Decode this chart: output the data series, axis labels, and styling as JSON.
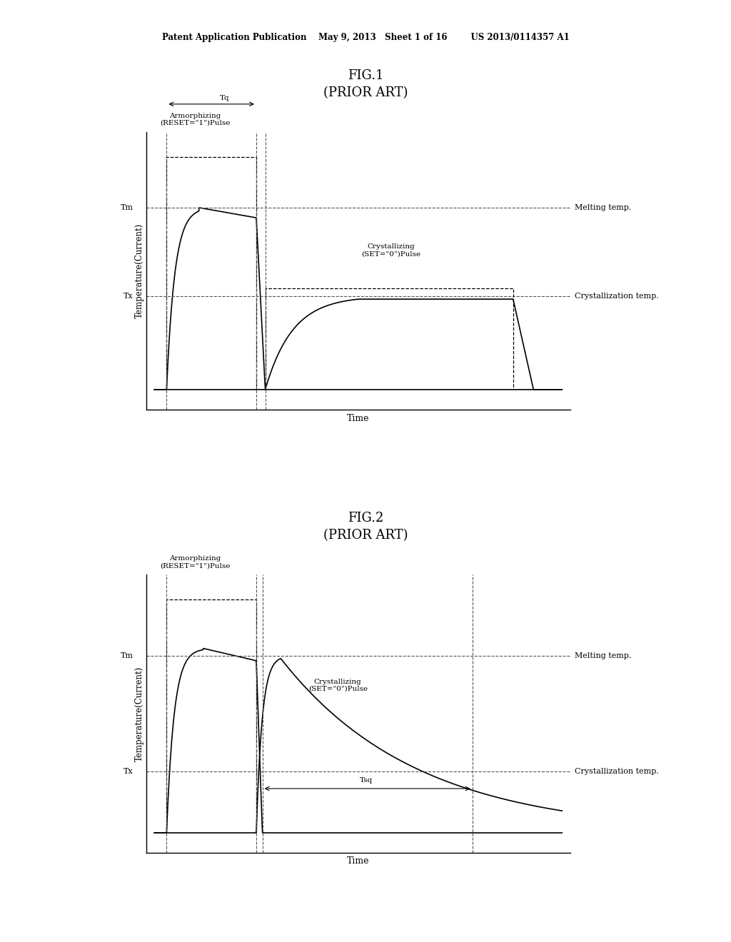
{
  "background_color": "#ffffff",
  "header_text": "Patent Application Publication    May 9, 2013   Sheet 1 of 16        US 2013/0114357 A1",
  "fig1_title": "FIG.1\n(PRIOR ART)",
  "fig2_title": "FIG.2\n(PRIOR ART)",
  "fig1_xlabel": "Time",
  "fig1_ylabel": "Temperature(Current)",
  "fig2_xlabel": "Time",
  "fig2_ylabel": "Temperature(Current)",
  "Tm_label": "Tm",
  "Tx_label": "Tx",
  "melting_temp_label": "Melting temp.",
  "crystallization_temp_label": "Crystallization temp.",
  "fig1_reset_label": "Armorphizing\n(RESET=\"1\")Pulse",
  "fig1_set_label": "Crystallizing\n(SET=\"0\")Pulse",
  "fig1_tq_label": "Tq",
  "fig2_reset_label": "Armorphizing\n(RESET=\"1\")Pulse",
  "fig2_set_label": "Crystallizing\n(SET=\"0\")Pulse",
  "fig2_tsq_label": "Tsq",
  "line_color": "#000000",
  "dashed_color": "#555555"
}
